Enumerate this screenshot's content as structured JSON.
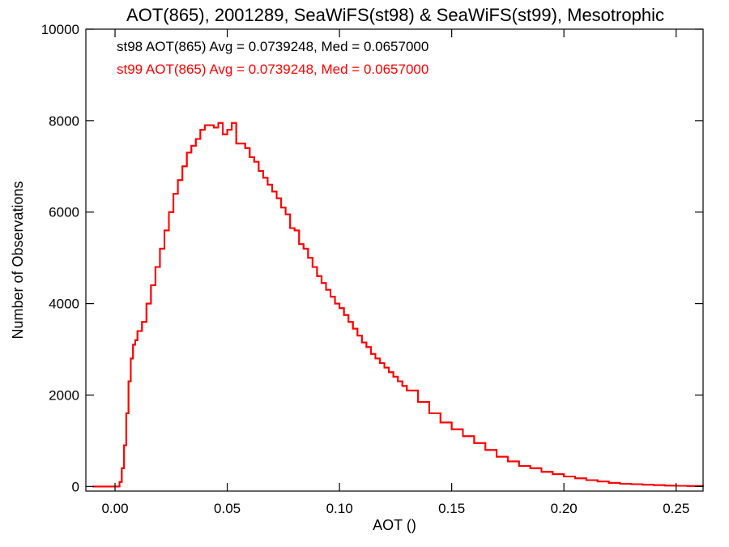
{
  "chart_data": {
    "type": "line",
    "title": "AOT(865), 2001289, SeaWiFS(st98) & SeaWiFS(st99), Mesotrophic",
    "xlabel": "AOT ()",
    "ylabel": "Number of Observations",
    "xlim": [
      -0.013,
      0.262
    ],
    "ylim": [
      -100,
      10000
    ],
    "xticks": [
      0.0,
      0.05,
      0.1,
      0.15,
      0.2,
      0.25
    ],
    "xtick_labels": [
      "0.00",
      "0.05",
      "0.10",
      "0.15",
      "0.20",
      "0.25"
    ],
    "yticks": [
      0,
      2000,
      4000,
      6000,
      8000,
      10000
    ],
    "ytick_labels": [
      "0",
      "2000",
      "4000",
      "6000",
      "8000",
      "10000"
    ],
    "grid": false,
    "step": true,
    "annotations": [
      {
        "text": "st98 AOT(865) Avg = 0.0739248, Med = 0.0657000",
        "color": "#000000"
      },
      {
        "text": "st99 AOT(865) Avg = 0.0739248, Med = 0.0657000",
        "color": "#ff0000"
      }
    ],
    "series": [
      {
        "color": "#ff0000",
        "x": [
          -0.01,
          0.002,
          0.003,
          0.004,
          0.005,
          0.006,
          0.007,
          0.008,
          0.009,
          0.01,
          0.012,
          0.014,
          0.016,
          0.018,
          0.02,
          0.022,
          0.024,
          0.026,
          0.028,
          0.03,
          0.032,
          0.034,
          0.036,
          0.038,
          0.04,
          0.042,
          0.044,
          0.046,
          0.048,
          0.05,
          0.052,
          0.054,
          0.056,
          0.058,
          0.06,
          0.062,
          0.064,
          0.066,
          0.068,
          0.07,
          0.072,
          0.074,
          0.076,
          0.078,
          0.08,
          0.082,
          0.084,
          0.086,
          0.088,
          0.09,
          0.092,
          0.094,
          0.096,
          0.098,
          0.1,
          0.102,
          0.104,
          0.106,
          0.108,
          0.11,
          0.112,
          0.114,
          0.116,
          0.118,
          0.12,
          0.122,
          0.124,
          0.126,
          0.128,
          0.13,
          0.135,
          0.14,
          0.145,
          0.15,
          0.155,
          0.16,
          0.165,
          0.17,
          0.175,
          0.18,
          0.185,
          0.19,
          0.195,
          0.2,
          0.205,
          0.21,
          0.215,
          0.22,
          0.225,
          0.23,
          0.235,
          0.24,
          0.245,
          0.25,
          0.255,
          0.262
        ],
        "values": [
          0,
          100,
          400,
          900,
          1600,
          2300,
          2800,
          3100,
          3200,
          3400,
          3600,
          4000,
          4400,
          4800,
          5200,
          5600,
          6000,
          6400,
          6700,
          7000,
          7300,
          7450,
          7600,
          7800,
          7900,
          7900,
          7850,
          7950,
          7700,
          7800,
          7950,
          7500,
          7500,
          7400,
          7200,
          7100,
          6900,
          6750,
          6600,
          6450,
          6300,
          6100,
          5950,
          5650,
          5600,
          5300,
          5200,
          5000,
          4800,
          4600,
          4450,
          4300,
          4150,
          4000,
          3900,
          3750,
          3600,
          3450,
          3300,
          3150,
          3050,
          2900,
          2800,
          2700,
          2600,
          2500,
          2400,
          2300,
          2200,
          2100,
          1850,
          1600,
          1400,
          1250,
          1100,
          950,
          800,
          650,
          550,
          450,
          400,
          320,
          270,
          220,
          180,
          140,
          110,
          80,
          60,
          50,
          40,
          30,
          20,
          15,
          10,
          0
        ]
      },
      {
        "color": "#ff0000",
        "x": [
          -0.01,
          0.002,
          0.003,
          0.004,
          0.005,
          0.006,
          0.007,
          0.008,
          0.009,
          0.01,
          0.012,
          0.014,
          0.016,
          0.018,
          0.02,
          0.022,
          0.024,
          0.026,
          0.028,
          0.03,
          0.032,
          0.034,
          0.036,
          0.038,
          0.04,
          0.042,
          0.044,
          0.046,
          0.048,
          0.05,
          0.052,
          0.054,
          0.056,
          0.058,
          0.06,
          0.062,
          0.064,
          0.066,
          0.068,
          0.07,
          0.072,
          0.074,
          0.076,
          0.078,
          0.08,
          0.082,
          0.084,
          0.086,
          0.088,
          0.09,
          0.092,
          0.094,
          0.096,
          0.098,
          0.1,
          0.102,
          0.104,
          0.106,
          0.108,
          0.11,
          0.112,
          0.114,
          0.116,
          0.118,
          0.12,
          0.122,
          0.124,
          0.126,
          0.128,
          0.13,
          0.135,
          0.14,
          0.145,
          0.15,
          0.155,
          0.16,
          0.165,
          0.17,
          0.175,
          0.18,
          0.185,
          0.19,
          0.195,
          0.2,
          0.205,
          0.21,
          0.215,
          0.22,
          0.225,
          0.23,
          0.235,
          0.24,
          0.245,
          0.25,
          0.255,
          0.262
        ],
        "values": [
          0,
          100,
          400,
          900,
          1600,
          2300,
          2800,
          3100,
          3200,
          3400,
          3600,
          4000,
          4400,
          4800,
          5200,
          5600,
          6000,
          6400,
          6700,
          7000,
          7300,
          7450,
          7600,
          7800,
          7900,
          7900,
          7850,
          7950,
          7700,
          7800,
          7950,
          7500,
          7500,
          7400,
          7200,
          7100,
          6900,
          6750,
          6600,
          6450,
          6300,
          6100,
          5950,
          5650,
          5600,
          5300,
          5200,
          5000,
          4800,
          4600,
          4450,
          4300,
          4150,
          4000,
          3900,
          3750,
          3600,
          3450,
          3300,
          3150,
          3050,
          2900,
          2800,
          2700,
          2600,
          2500,
          2400,
          2300,
          2200,
          2100,
          1850,
          1600,
          1400,
          1250,
          1100,
          950,
          800,
          650,
          550,
          450,
          400,
          320,
          270,
          220,
          180,
          140,
          110,
          80,
          60,
          50,
          40,
          30,
          20,
          15,
          10,
          0
        ]
      }
    ]
  }
}
